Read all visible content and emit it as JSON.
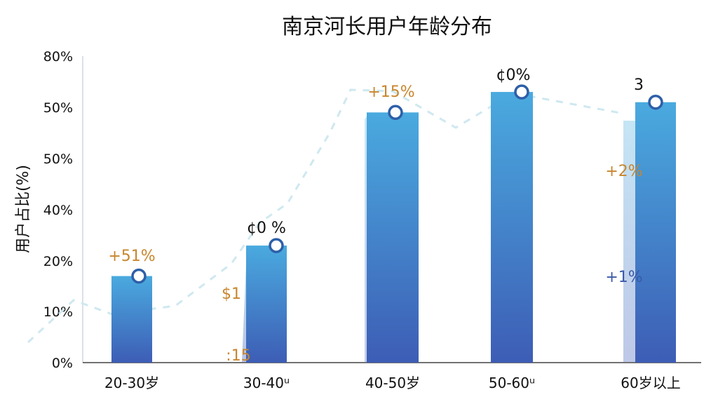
{
  "chart_data": {
    "type": "bar",
    "title": "南京河长用户年龄分布",
    "ylabel": "用户占比(%)",
    "xlabel": "",
    "y_tick_labels": [
      "0%",
      "10%",
      "20%",
      "40%",
      "50%",
      "50%",
      "80%"
    ],
    "categories": [
      "20-30岁",
      "30-40ᵘ",
      "40-50岁",
      "50-60ᵘ",
      "60岁以上"
    ],
    "values": [
      17,
      23,
      49,
      53,
      51
    ],
    "trend_values": [
      17,
      23,
      49,
      53,
      51
    ],
    "annotations": [
      {
        "text": "+51%",
        "color": "#c8862e"
      },
      {
        "text": "¢0 %",
        "color": "#111111"
      },
      {
        "text": "$1",
        "color": "#c8862e"
      },
      {
        "text": ":15",
        "color": "#c8862e"
      },
      {
        "text": "+15%",
        "color": "#c8862e"
      },
      {
        "text": "¢0%",
        "color": "#111111"
      },
      {
        "text": "3",
        "color": "#111111"
      },
      {
        "text": "+2%",
        "color": "#c8862e"
      },
      {
        "text": "+1%",
        "color": "#3a5aa8"
      }
    ],
    "colors": {
      "bar_top": "#4aaadf",
      "bar_bottom": "#3d5db5",
      "marker": "#2e5fa8",
      "dashed_line": "#cfe8f0"
    },
    "grid": false,
    "legend": "none"
  }
}
